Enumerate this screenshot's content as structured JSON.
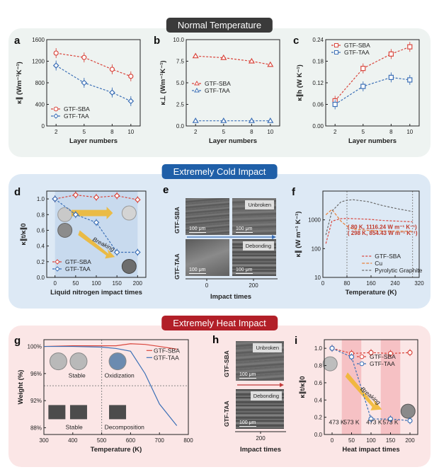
{
  "sections": {
    "normal": {
      "title": "Normal Temperature",
      "color": "#3a3a3a",
      "bg": "#eef3f1"
    },
    "cold": {
      "title": "Extremely Cold Impact",
      "color": "#1f5fa8",
      "bg": "#dde9f5"
    },
    "heat": {
      "title": "Extremely Heat Impact",
      "color": "#b21f28",
      "bg": "#fbe6e6"
    }
  },
  "colors": {
    "sba": "#d9463d",
    "taa": "#3b6fb6",
    "cu": "#e8823a",
    "graphite": "#6a6a6a"
  },
  "chart_data": [
    {
      "id": "a",
      "type": "line",
      "panel_label": "a",
      "xlabel": "Layer numbers",
      "ylabel": "κ∥ (Wm⁻¹K⁻¹)",
      "x": [
        2,
        5,
        8,
        10
      ],
      "xlim": [
        1,
        11
      ],
      "ylim": [
        0,
        1600
      ],
      "yticks": [
        0,
        400,
        800,
        1200,
        1600
      ],
      "series": [
        {
          "name": "GTF-SBA",
          "values": [
            1350,
            1270,
            1050,
            920
          ]
        },
        {
          "name": "GTF-TAA",
          "values": [
            1120,
            800,
            620,
            460
          ]
        }
      ],
      "legend": "lower-left"
    },
    {
      "id": "b",
      "type": "line",
      "panel_label": "b",
      "xlabel": "Layer numbers",
      "ylabel": "κ⊥ (Wm⁻¹K⁻¹)",
      "x": [
        2,
        5,
        8,
        10
      ],
      "xlim": [
        1,
        11
      ],
      "ylim": [
        0,
        10
      ],
      "yticks": [
        "0.0",
        "2.5",
        "5.0",
        "7.5",
        "10.0"
      ],
      "series": [
        {
          "name": "GTF-SBA",
          "values": [
            8.1,
            7.9,
            7.5,
            7.1
          ]
        },
        {
          "name": "GTF-TAA",
          "values": [
            0.6,
            0.6,
            0.6,
            0.6
          ]
        }
      ],
      "legend": "middle-left"
    },
    {
      "id": "c",
      "type": "line",
      "panel_label": "c",
      "xlabel": "Layer numbers",
      "ylabel": "κ∥h (W K⁻¹)",
      "x": [
        2,
        5,
        8,
        10
      ],
      "xlim": [
        1,
        11
      ],
      "ylim": [
        0,
        0.24
      ],
      "yticks": [
        "0.00",
        "0.06",
        "0.12",
        "0.18",
        "0.24"
      ],
      "series": [
        {
          "name": "GTF-SBA",
          "values": [
            0.07,
            0.16,
            0.2,
            0.22
          ]
        },
        {
          "name": "GTF-TAA",
          "values": [
            0.06,
            0.11,
            0.135,
            0.128
          ]
        }
      ],
      "legend": "top-left"
    },
    {
      "id": "d",
      "type": "line",
      "panel_label": "d",
      "xlabel": "Liquid nitrogen impact times",
      "ylabel": "κ∥t/κ∥0",
      "x": [
        0,
        50,
        100,
        150,
        200
      ],
      "xlim": [
        -20,
        220
      ],
      "ylim": [
        0,
        1.1
      ],
      "yticks": [
        "0.0",
        "0.2",
        "0.4",
        "0.6",
        "0.8",
        "1.0"
      ],
      "series": [
        {
          "name": "GTF-SBA",
          "values": [
            1.0,
            1.05,
            1.02,
            1.04,
            0.99
          ]
        },
        {
          "name": "GTF-TAA",
          "values": [
            1.0,
            0.8,
            0.7,
            0.32,
            0.32
          ]
        }
      ],
      "annotation": "Breaking",
      "legend": "lower-left"
    },
    {
      "id": "f",
      "type": "line",
      "panel_label": "f",
      "xlabel": "Temperature (K)",
      "ylabel": "κ∥ (W m⁻¹ K⁻¹)",
      "yscale": "log",
      "x": [
        10,
        30,
        60,
        80,
        100,
        150,
        200,
        250,
        298
      ],
      "xlim": [
        0,
        320
      ],
      "ylim": [
        10,
        10000
      ],
      "xticks": [
        0,
        80,
        160,
        240,
        320
      ],
      "yticks": [
        10,
        100,
        1000
      ],
      "series": [
        {
          "name": "GTF-SBA",
          "values": [
            150,
            900,
            1100,
            1116.24,
            1100,
            1050,
            950,
            900,
            854.43
          ]
        },
        {
          "name": "Cu",
          "values": [
            1500,
            2300,
            900,
            600,
            480,
            430,
            410,
            405,
            400
          ]
        },
        {
          "name": "Pyrolytic Graphite",
          "values": [
            300,
            2000,
            4200,
            4800,
            5000,
            4300,
            3100,
            2400,
            1950
          ]
        }
      ],
      "annotations": [
        "( 80 K, 1116.24 W m⁻¹ K⁻¹)",
        "( 298 K, 854.43 W m⁻¹ K⁻¹)"
      ],
      "legend": "bottom-right"
    },
    {
      "id": "g",
      "type": "line",
      "panel_label": "g",
      "xlabel": "Temperature (K)",
      "ylabel": "Weight (%)",
      "x": [
        300,
        400,
        500,
        550,
        600,
        650,
        700,
        760
      ],
      "xlim": [
        300,
        800
      ],
      "ylim": [
        87,
        101
      ],
      "xticks": [
        300,
        400,
        500,
        600,
        700,
        800
      ],
      "yticks": [
        "88%",
        "92%",
        "96%",
        "100%"
      ],
      "series": [
        {
          "name": "GTF-SBA",
          "values": [
            100.0,
            100.1,
            100.1,
            100.1,
            100.4,
            100.3,
            100.0,
            99.6
          ]
        },
        {
          "name": "GTF-TAA",
          "values": [
            100.0,
            100.0,
            99.9,
            99.7,
            99.3,
            96.0,
            91.5,
            88.3
          ]
        }
      ],
      "labels": [
        "Stable",
        "Oxidization",
        "Stable",
        "Decomposition"
      ],
      "legend": "top-right"
    },
    {
      "id": "i",
      "type": "line",
      "panel_label": "i",
      "xlabel": "Heat impact times",
      "ylabel": "κ∥t/κ∥0",
      "x": [
        0,
        50,
        100,
        150,
        200
      ],
      "xlim": [
        -20,
        220
      ],
      "ylim": [
        0,
        1.1
      ],
      "yticks": [
        "0.0",
        "0.2",
        "0.4",
        "0.6",
        "0.8",
        "1.0"
      ],
      "series": [
        {
          "name": "GTF-SBA",
          "values": [
            1.0,
            0.94,
            0.95,
            0.94,
            0.95
          ]
        },
        {
          "name": "GTF-TAA",
          "values": [
            1.0,
            0.9,
            0.18,
            0.18,
            0.16
          ]
        }
      ],
      "bands": [
        "473 K",
        "573 K",
        "473 K",
        "573 K"
      ],
      "annotation": "Breaking",
      "legend": "top-right"
    }
  ],
  "panel_e": {
    "label": "e",
    "row1": "GTF-SBA",
    "row2": "GTF-TAA",
    "tag1": "Unbroken",
    "tag2": "Debonding",
    "scale": "100 μm",
    "xlabel": "Impact times",
    "xticks": [
      "0",
      "200"
    ]
  },
  "panel_h": {
    "label": "h",
    "row1": "GTF-SBA",
    "row2": "GTF-TAA",
    "tag1": "Unbroken",
    "tag2": "Debonding",
    "scale": "100 μm",
    "xlabel": "Impact times",
    "xtick": "200"
  }
}
